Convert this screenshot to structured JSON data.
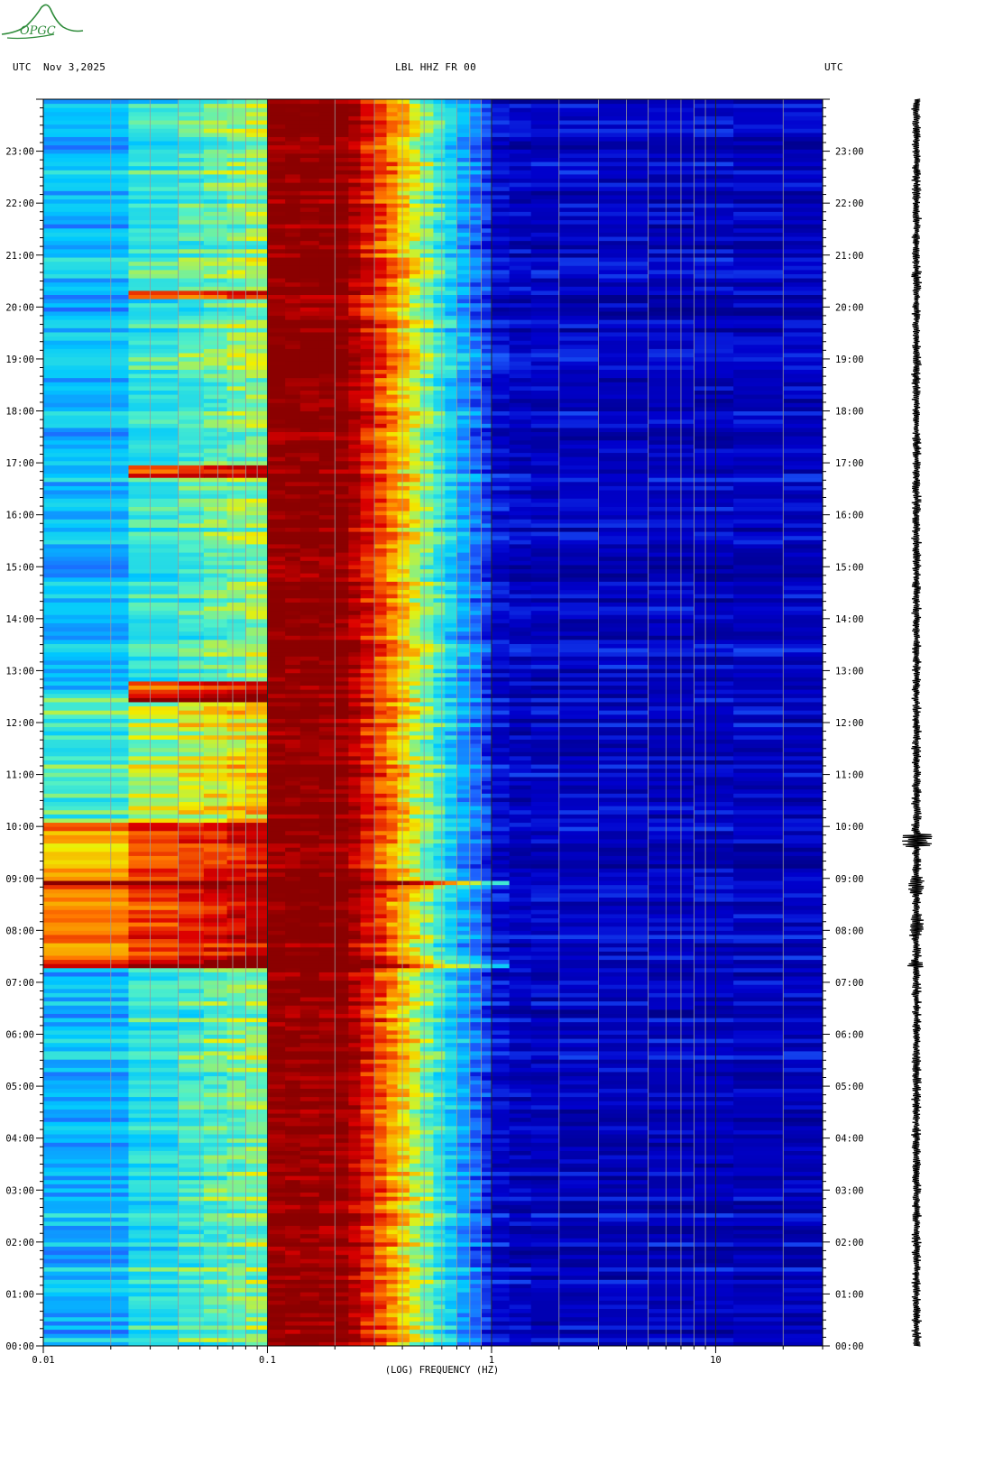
{
  "header": {
    "left_utc": "UTC",
    "date": "Nov 3,2025",
    "station": "LBL HHZ FR 00",
    "right_utc": "UTC"
  },
  "logo": {
    "text": "OPGC",
    "color": "#2e8b3a"
  },
  "chart_data": {
    "type": "heatmap",
    "subtype": "spectrogram",
    "xlabel": "(LOG) FREQUENCY (HZ)",
    "ylabel": "",
    "x_scale": "log",
    "xlim": [
      0.01,
      30
    ],
    "ylim": [
      "00:00",
      "24:00"
    ],
    "x_tick_labels": [
      "0.01",
      "0.1",
      "1",
      "10"
    ],
    "y_tick_labels": [
      "00:00",
      "01:00",
      "02:00",
      "03:00",
      "04:00",
      "05:00",
      "06:00",
      "07:00",
      "08:00",
      "09:00",
      "10:00",
      "11:00",
      "12:00",
      "13:00",
      "14:00",
      "15:00",
      "16:00",
      "17:00",
      "18:00",
      "19:00",
      "20:00",
      "21:00",
      "22:00",
      "23:00"
    ],
    "colormap": [
      "#00008b",
      "#0000cd",
      "#1e64ff",
      "#00c8ff",
      "#50f0c8",
      "#f0f000",
      "#ff7800",
      "#dc0000",
      "#8b0000"
    ],
    "seismic_events_utc_hours": [
      7.35,
      8.9
    ],
    "grid": true
  }
}
